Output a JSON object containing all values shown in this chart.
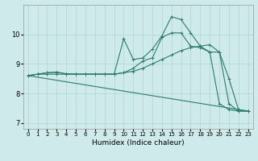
{
  "xlabel": "Humidex (Indice chaleur)",
  "bg_color": "#ceeaea",
  "line_color": "#2d7b6e",
  "grid_color": "#aed4d4",
  "xlim": [
    -0.5,
    23.5
  ],
  "ylim": [
    6.8,
    11.0
  ],
  "yticks": [
    7,
    8,
    9,
    10
  ],
  "xticks": [
    0,
    1,
    2,
    3,
    4,
    5,
    6,
    7,
    8,
    9,
    10,
    11,
    12,
    13,
    14,
    15,
    16,
    17,
    18,
    19,
    20,
    21,
    22,
    23
  ],
  "line1_x": [
    0,
    1,
    2,
    3,
    4,
    5,
    6,
    7,
    8,
    9,
    10,
    11,
    12,
    13,
    14,
    15,
    16,
    17,
    18,
    19,
    20,
    21,
    22,
    23
  ],
  "line1_y": [
    8.6,
    8.65,
    8.7,
    8.72,
    8.66,
    8.65,
    8.65,
    8.65,
    8.65,
    8.65,
    9.85,
    9.15,
    9.2,
    9.5,
    9.95,
    10.6,
    10.5,
    10.05,
    9.6,
    9.4,
    9.4,
    7.65,
    7.4,
    7.4
  ],
  "line2_x": [
    0,
    1,
    2,
    3,
    4,
    5,
    6,
    7,
    8,
    9,
    10,
    11,
    12,
    13,
    14,
    15,
    16,
    17,
    18,
    19,
    20,
    21,
    22,
    23
  ],
  "line2_y": [
    8.6,
    8.65,
    8.7,
    8.72,
    8.66,
    8.65,
    8.65,
    8.65,
    8.65,
    8.65,
    8.7,
    8.85,
    9.1,
    9.2,
    9.9,
    10.05,
    10.05,
    9.6,
    9.55,
    9.4,
    7.65,
    7.45,
    7.4,
    7.4
  ],
  "line3_x": [
    0,
    1,
    2,
    3,
    4,
    5,
    6,
    7,
    8,
    9,
    10,
    11,
    12,
    13,
    14,
    15,
    16,
    17,
    18,
    19,
    20,
    21,
    22,
    23
  ],
  "line3_y": [
    8.6,
    8.65,
    8.65,
    8.65,
    8.65,
    8.65,
    8.65,
    8.65,
    8.65,
    8.65,
    8.7,
    8.75,
    8.85,
    9.0,
    9.15,
    9.3,
    9.45,
    9.55,
    9.6,
    9.65,
    9.4,
    8.5,
    7.45,
    7.4
  ],
  "line4_x": [
    0,
    23
  ],
  "line4_y": [
    8.6,
    7.4
  ]
}
